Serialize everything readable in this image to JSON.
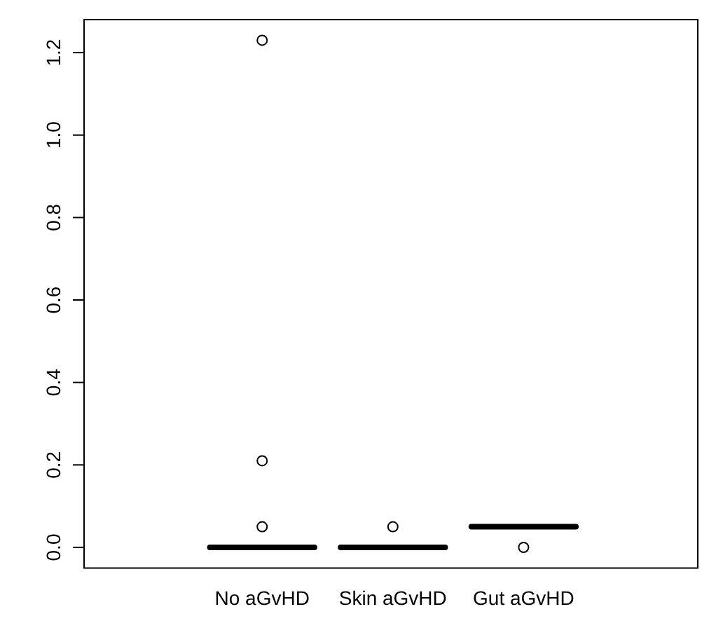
{
  "chart_data": {
    "type": "box",
    "categories": [
      "No aGvHD",
      "Skin aGvHD",
      "Gut aGvHD"
    ],
    "boxes": [
      {
        "low": 0,
        "q1": 0,
        "median": 0,
        "q3": 0,
        "high": 0,
        "outliers": [
          0.05,
          0.21,
          1.23
        ]
      },
      {
        "low": 0,
        "q1": 0,
        "median": 0,
        "q3": 0,
        "high": 0,
        "outliers": [
          0.05
        ]
      },
      {
        "low": 0.05,
        "q1": 0.05,
        "median": 0.05,
        "q3": 0.05,
        "high": 0.05,
        "outliers": [
          0
        ]
      }
    ],
    "ylim": [
      -0.05,
      1.28
    ],
    "yticks": [
      {
        "value": 0,
        "label": "0.0"
      },
      0.2,
      0.4,
      0.6,
      0.8,
      {
        "value": 1,
        "label": "1.0"
      },
      1.2
    ],
    "grid": false,
    "legend": false
  }
}
